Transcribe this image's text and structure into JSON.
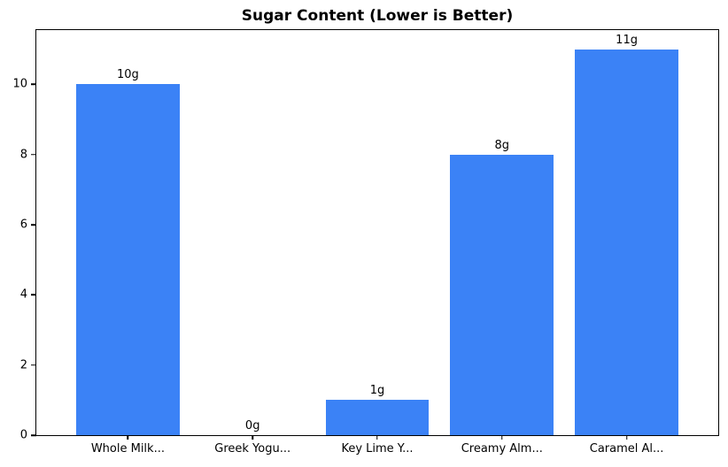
{
  "chart_data": {
    "type": "bar",
    "title": "Sugar Content (Lower is Better)",
    "categories": [
      "Whole Milk...",
      "Greek Yogu...",
      "Key Lime Y...",
      "Creamy Alm...",
      "Caramel Al..."
    ],
    "values": [
      10,
      0,
      1,
      8,
      11
    ],
    "bar_labels": [
      "10g",
      "0g",
      "1g",
      "8g",
      "11g"
    ],
    "xlabel": "",
    "ylabel": "",
    "yticks": [
      0,
      2,
      4,
      6,
      8,
      10
    ],
    "ylim": [
      0,
      11.55
    ],
    "grid": false,
    "legend_position": "none",
    "bar_color": "#3b82f6",
    "axis_color": "#000000",
    "background_color": "#ffffff"
  }
}
